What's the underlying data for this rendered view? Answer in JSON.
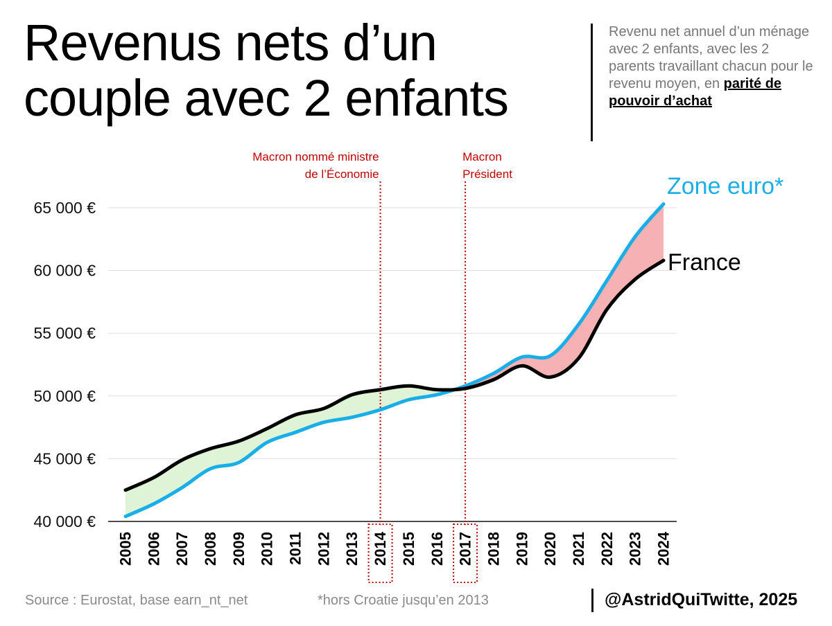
{
  "header": {
    "title_line1": "Revenus nets d’un",
    "title_line2": "couple avec 2 enfants",
    "description": "Revenu net annuel d’un ménage avec 2 enfants, avec les 2 parents travaillant chacun pour le revenu moyen, en",
    "description_emphasis": "parité de pouvoir d’achat"
  },
  "footer": {
    "source": "Source : Eurostat, base earn_nt_net",
    "note": "*hors Croatie jusqu’en 2013",
    "credit": "@AstridQuiTwitte, 2025"
  },
  "colors": {
    "france": "#000000",
    "eurozone": "#1aaee8",
    "france_above_fill": "#dff3d6",
    "eurozone_above_fill": "#f5b1b4",
    "annotation": "#c00000",
    "grid": "#dddddd"
  },
  "chart_data": {
    "type": "line",
    "title": "Revenus nets d’un couple avec 2 enfants",
    "x": [
      2005,
      2006,
      2007,
      2008,
      2009,
      2010,
      2011,
      2012,
      2013,
      2014,
      2015,
      2016,
      2017,
      2018,
      2019,
      2020,
      2021,
      2022,
      2023,
      2024
    ],
    "series": [
      {
        "name": "France",
        "values": [
          42500,
          43500,
          44900,
          45800,
          46400,
          47400,
          48500,
          49000,
          50100,
          50500,
          50800,
          50500,
          50600,
          51300,
          52400,
          51500,
          53000,
          56900,
          59300,
          60800
        ]
      },
      {
        "name": "Zone euro*",
        "values": [
          40400,
          41400,
          42700,
          44200,
          44700,
          46300,
          47100,
          47900,
          48300,
          48900,
          49700,
          50100,
          50800,
          51800,
          53100,
          53200,
          55700,
          59200,
          62700,
          65300
        ]
      }
    ],
    "y_ticks": [
      40000,
      45000,
      50000,
      55000,
      60000,
      65000
    ],
    "y_tick_labels": [
      "40 000 €",
      "45 000 €",
      "50 000 €",
      "55 000 €",
      "60 000 €",
      "65 000 €"
    ],
    "ylim": [
      40000,
      65000
    ],
    "grid": true,
    "annotations": [
      {
        "year": 2014,
        "text_line1": "Macron nommé ministre",
        "text_line2": "de l’Économie"
      },
      {
        "year": 2017,
        "text_line1": "Macron",
        "text_line2": "Président"
      }
    ]
  }
}
